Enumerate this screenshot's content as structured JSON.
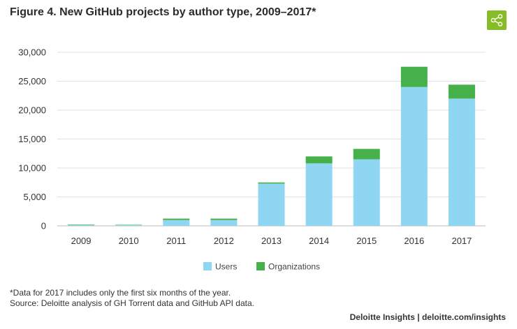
{
  "header": {
    "title": "Figure 4. New GitHub projects by author type, 2009–2017*",
    "share_icon": "share-icon"
  },
  "chart_data": {
    "type": "bar",
    "stacked": true,
    "categories": [
      "2009",
      "2010",
      "2011",
      "2012",
      "2013",
      "2014",
      "2015",
      "2016",
      "2017"
    ],
    "series": [
      {
        "name": "Users",
        "color": "#8fd6f2",
        "values": [
          150,
          120,
          1000,
          1000,
          7300,
          10800,
          11500,
          24000,
          22000
        ]
      },
      {
        "name": "Organizations",
        "color": "#46b04b",
        "values": [
          80,
          60,
          250,
          250,
          200,
          1200,
          1800,
          3500,
          2400
        ]
      }
    ],
    "y_ticks": [
      "0",
      "5,000",
      "10,000",
      "15,000",
      "20,000",
      "25,000",
      "30,000"
    ],
    "ylim": [
      0,
      30000
    ],
    "grid": true,
    "legend": "bottom-center",
    "xlabel": "",
    "ylabel": ""
  },
  "footer": {
    "note": "*Data for 2017 includes only the first six months of the year.",
    "source": "Source: Deloitte analysis of GH Torrent data and GitHub API data.",
    "brand": "Deloitte Insights | deloitte.com/insights"
  }
}
